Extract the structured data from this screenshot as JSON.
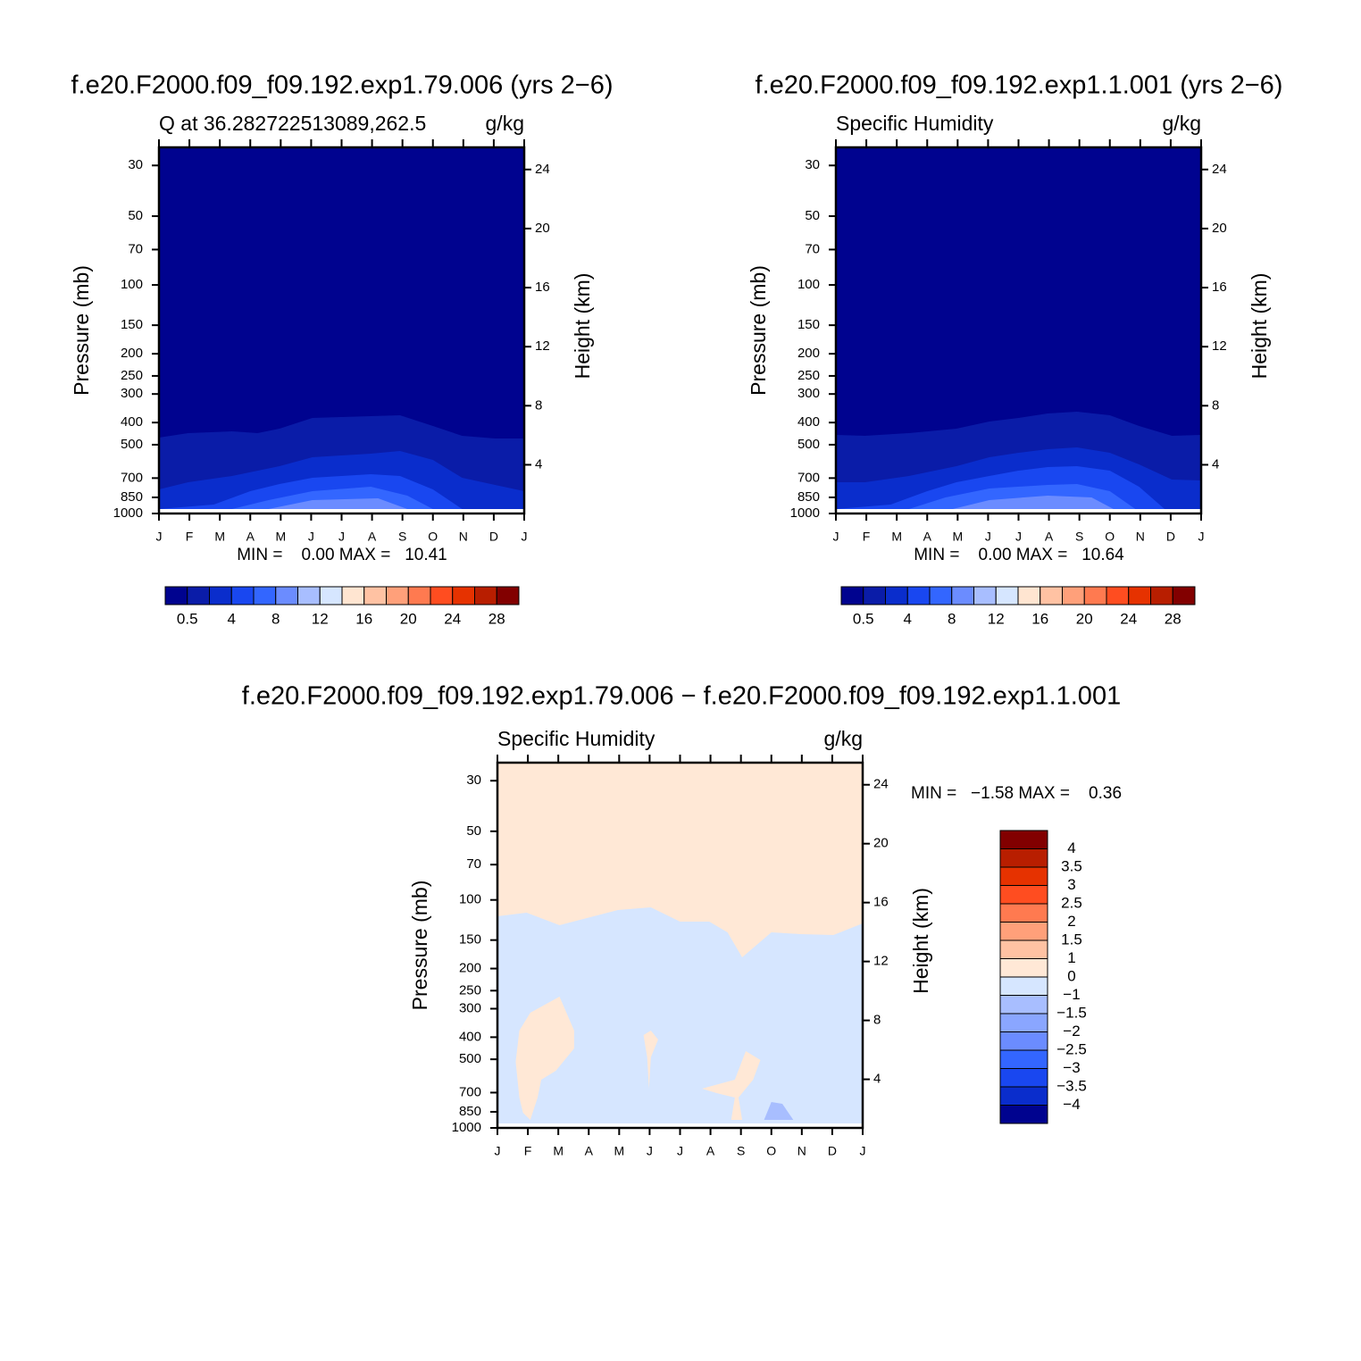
{
  "chart_data": [
    {
      "type": "contour",
      "title": "f.e20.F2000.f09_f09.192.exp1.79.006 (yrs 2−6)",
      "left_label": "Q at 36.282722513089,262.5",
      "right_label": "g/kg",
      "ylabel": "Pressure (mb)",
      "y2label": "Height (km)",
      "min_max": "MIN =    0.00 MAX =   10.41",
      "categories": [
        "J",
        "F",
        "M",
        "A",
        "M",
        "J",
        "J",
        "A",
        "S",
        "O",
        "N",
        "D",
        "J"
      ],
      "ylim": [
        1000,
        25
      ],
      "log_y": true,
      "yticks": [
        30,
        50,
        70,
        100,
        150,
        200,
        250,
        300,
        400,
        500,
        700,
        850,
        1000
      ],
      "y2lim": [
        0.7,
        25.5
      ],
      "y2ticks": [
        24,
        20,
        16,
        12,
        8,
        4
      ],
      "colorbar": {
        "orientation": "horizontal",
        "colors": [
          "#00038f",
          "#0a1ca8",
          "#0a2dcc",
          "#1947f0",
          "#3366ff",
          "#6b8cff",
          "#a8beff",
          "#d6e6ff",
          "#ffe5d1",
          "#ffc2a3",
          "#ffa07a",
          "#ff7a50",
          "#ff4d20",
          "#e63200",
          "#b81e00",
          "#820000"
        ],
        "ticks": [
          0.5,
          4,
          8,
          12,
          16,
          20,
          24,
          28
        ]
      }
    },
    {
      "type": "contour",
      "title": "f.e20.F2000.f09_f09.192.exp1.1.001 (yrs 2−6)",
      "left_label": "Specific Humidity",
      "right_label": "g/kg",
      "ylabel": "Pressure (mb)",
      "y2label": "Height (km)",
      "min_max": "MIN =    0.00 MAX =   10.64",
      "categories": [
        "J",
        "F",
        "M",
        "A",
        "M",
        "J",
        "J",
        "A",
        "S",
        "O",
        "N",
        "D",
        "J"
      ],
      "ylim": [
        1000,
        25
      ],
      "log_y": true,
      "yticks": [
        30,
        50,
        70,
        100,
        150,
        200,
        250,
        300,
        400,
        500,
        700,
        850,
        1000
      ],
      "y2lim": [
        0.7,
        25.5
      ],
      "y2ticks": [
        24,
        20,
        16,
        12,
        8,
        4
      ],
      "colorbar": {
        "orientation": "horizontal",
        "colors": [
          "#00038f",
          "#0a1ca8",
          "#0a2dcc",
          "#1947f0",
          "#3366ff",
          "#6b8cff",
          "#a8beff",
          "#d6e6ff",
          "#ffe5d1",
          "#ffc2a3",
          "#ffa07a",
          "#ff7a50",
          "#ff4d20",
          "#e63200",
          "#b81e00",
          "#820000"
        ],
        "ticks": [
          0.5,
          4,
          8,
          12,
          16,
          20,
          24,
          28
        ]
      }
    },
    {
      "type": "contour",
      "title": "f.e20.F2000.f09_f09.192.exp1.79.006 − f.e20.F2000.f09_f09.192.exp1.1.001",
      "left_label": "Specific Humidity",
      "right_label": "g/kg",
      "ylabel": "Pressure (mb)",
      "y2label": "Height (km)",
      "min_max": "MIN =   −1.58 MAX =    0.36",
      "categories": [
        "J",
        "F",
        "M",
        "A",
        "M",
        "J",
        "J",
        "A",
        "S",
        "O",
        "N",
        "D",
        "J"
      ],
      "ylim": [
        1000,
        25
      ],
      "log_y": true,
      "yticks": [
        30,
        50,
        70,
        100,
        150,
        200,
        250,
        300,
        400,
        500,
        700,
        850,
        1000
      ],
      "y2lim": [
        0.7,
        25.5
      ],
      "y2ticks": [
        24,
        20,
        16,
        12,
        8,
        4
      ],
      "colorbar": {
        "orientation": "vertical",
        "colors": [
          "#820000",
          "#b81e00",
          "#e63200",
          "#ff4d20",
          "#ff7a50",
          "#ffa07a",
          "#ffc2a3",
          "#ffe8d6",
          "#d6e6ff",
          "#a8beff",
          "#8aa6ff",
          "#6b8cff",
          "#3366ff",
          "#1947f0",
          "#0a2dcc",
          "#00038f"
        ],
        "ticks": [
          4,
          3.5,
          3,
          2.5,
          2,
          1.5,
          1,
          0,
          {
            "value": -1,
            "label": "−1"
          },
          {
            "value": -1.5,
            "label": "−1.5"
          },
          {
            "value": -2,
            "label": "−2"
          },
          {
            "value": -2.5,
            "label": "−2.5"
          },
          {
            "value": -3,
            "label": "−3"
          },
          {
            "value": -3.5,
            "label": "−3.5"
          },
          {
            "value": -4,
            "label": "−4"
          }
        ]
      }
    }
  ]
}
